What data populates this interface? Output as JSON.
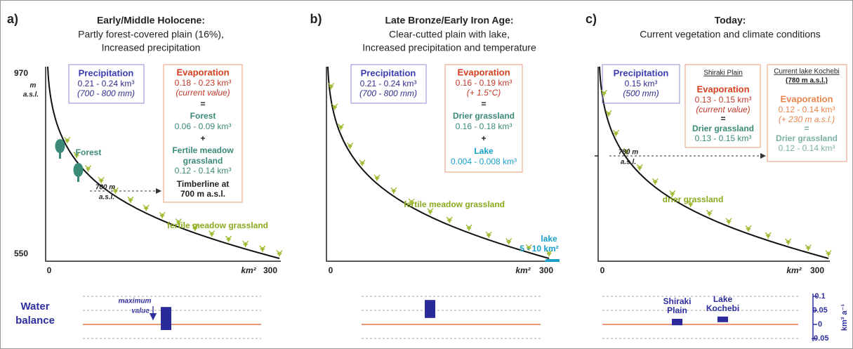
{
  "figure": {
    "panels": [
      {
        "label": "a)",
        "title": "Early/Middle Holocene:",
        "subtitle": [
          "Partly forest-covered plain (16%),",
          "Increased precipitation"
        ],
        "y_axis": {
          "top": "970",
          "unit": [
            "m",
            "a.s.l."
          ],
          "bottom": "550"
        },
        "x_axis": {
          "start": "0",
          "unit": "km²",
          "end": "300"
        },
        "precipitation": {
          "title": "Precipitation",
          "amount": "0.21 - 0.24 km³",
          "note": "(700 - 800 mm)"
        },
        "evaporation": {
          "title": "Evaporation",
          "amount": "0.18 - 0.23 km³",
          "note": "(current value)",
          "equals": "=",
          "forest": {
            "name": "Forest",
            "amount": "0.06 - 0.09 km³"
          },
          "plus": "+",
          "grassland": {
            "name": [
              "Fertile meadow",
              "grassland"
            ],
            "amount": "0.12 - 0.14 km³"
          },
          "timberline": [
            "Timberline at",
            "700 m a.s.l."
          ]
        },
        "forest_label": "Forest",
        "marker": [
          "700 m",
          "a.s.l."
        ],
        "vegetation_label": "fertile meadow grassland",
        "water_balance_label": [
          "Water",
          "balance"
        ],
        "annotation": [
          "maximum",
          "value"
        ],
        "bars": [
          {
            "low": -0.02,
            "high": 0.062
          }
        ]
      },
      {
        "label": "b)",
        "title": "Late Bronze/Early Iron Age:",
        "subtitle": [
          "Clear-cutted plain with lake,",
          "Increased precipitation and temperature"
        ],
        "x_axis": {
          "start": "0",
          "unit": "km²",
          "end": "300"
        },
        "precipitation": {
          "title": "Precipitation",
          "amount": "0.21 - 0.24 km³",
          "note": "(700 - 800 mm)"
        },
        "evaporation": {
          "title": "Evaporation",
          "amount": "0.16 - 0.19 km³",
          "note": "(+ 1.5°C)",
          "equals": "=",
          "grassland": {
            "name": "Drier grassland",
            "amount": "0.16 - 0.18 km³"
          },
          "plus": "+",
          "lake": {
            "name": "Lake",
            "amount": "0.004 - 0.008 km³"
          }
        },
        "vegetation_label": "fertile meadow grassland",
        "lake_label": [
          "lake",
          "5 - 10 km²"
        ],
        "bars": [
          {
            "low": 0.023,
            "high": 0.087
          }
        ]
      },
      {
        "label": "c)",
        "title": "Today:",
        "subtitle": [
          "Current vegetation and climate conditions"
        ],
        "x_axis": {
          "start": "0",
          "unit": "km²",
          "end": "300"
        },
        "precipitation": {
          "title": "Precipitation",
          "amount": "0.15 km³",
          "note": "(500 mm)"
        },
        "shiraki": {
          "heading": "Shiraki Plain",
          "title": "Evaporation",
          "amount": "0.13 - 0.15 km³",
          "note": "(current value)",
          "equals": "=",
          "grassland": {
            "name": "Drier grassland",
            "amount": "0.13 - 0.15 km³"
          }
        },
        "kochebi": {
          "heading": [
            "Current lake Kochebi",
            "(780 m a.s.l.)"
          ],
          "title": "Evaporation",
          "amount": "0.12 - 0.14 km³",
          "note": "(+ 230 m a.s.l.)",
          "equals": "=",
          "grassland": {
            "name": "Drier grassland",
            "amount": "0.12 - 0.14 km³"
          }
        },
        "marker": [
          "780 m",
          "a.s.l."
        ],
        "vegetation_label": "drier grassland",
        "bars": [
          {
            "name": [
              "Shiraki",
              "Plain"
            ],
            "low": -0.003,
            "high": 0.02
          },
          {
            "name": [
              "Lake",
              "Kochebi"
            ],
            "low": 0.008,
            "high": 0.028
          }
        ]
      }
    ],
    "water_balance_axis": {
      "ylim": [
        -0.05,
        0.1
      ],
      "yticks": [
        0.1,
        0.05,
        0,
        -0.05
      ],
      "unit": "km³ a⁻¹"
    }
  }
}
